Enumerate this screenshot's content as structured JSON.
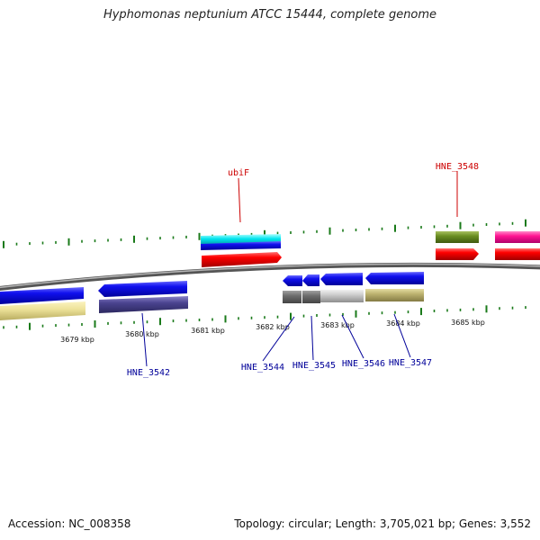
{
  "title": "Hyphomonas neptunium ATCC 15444, complete genome",
  "footer": {
    "accession": "Accession: NC_008358",
    "topology": "Topology: circular; Length: 3,705,021 bp; Genes: 3,552"
  },
  "colors": {
    "backbone": "#808080",
    "tick": "#1a7a1a",
    "label_forward": "#cc0000",
    "label_reverse": "#000099"
  },
  "scale_labels": [
    "3679 kbp",
    "3680 kbp",
    "3681 kbp",
    "3682 kbp",
    "3683 kbp",
    "3684 kbp",
    "3685 kbp"
  ],
  "gene_labels": [
    {
      "id": "ubiF",
      "text": "ubiF",
      "strand": "forward"
    },
    {
      "id": "hne-3548",
      "text": "HNE_3548",
      "strand": "forward"
    },
    {
      "id": "hne-3542",
      "text": "HNE_3542",
      "strand": "reverse"
    },
    {
      "id": "hne-3544",
      "text": "HNE_3544",
      "strand": "reverse"
    },
    {
      "id": "hne-3545",
      "text": "HNE_3545",
      "strand": "reverse"
    },
    {
      "id": "hne-3546",
      "text": "HNE_3546",
      "strand": "reverse"
    },
    {
      "id": "hne-3547",
      "text": "HNE_3547",
      "strand": "reverse"
    }
  ]
}
